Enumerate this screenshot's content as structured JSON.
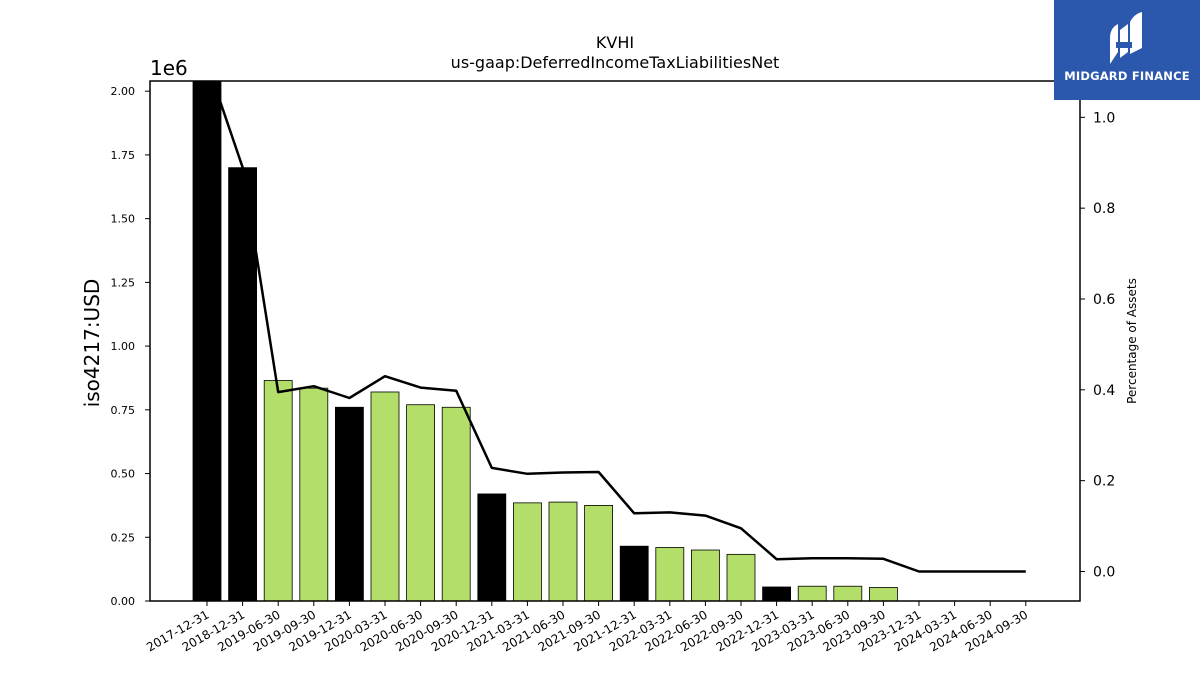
{
  "chart_data": {
    "type": "bar",
    "title": "KVHI",
    "subtitle": "us-gaap:DeferredIncomeTaxLiabilitiesNet",
    "ylabel": "iso4217:USD",
    "y_offset_label": "1e6",
    "y2label": "Percentage of Assets",
    "ylim": [
      0,
      2.04
    ],
    "y2lim": [
      -0.065,
      1.08
    ],
    "yticks": [
      "0.00",
      "0.25",
      "0.50",
      "0.75",
      "1.00",
      "1.25",
      "1.50",
      "1.75",
      "2.00"
    ],
    "y2ticks": [
      "0.0",
      "0.2",
      "0.4",
      "0.6",
      "0.8",
      "1.0"
    ],
    "grid": false,
    "categories": [
      "2017-12-31",
      "2018-12-31",
      "2019-06-30",
      "2019-09-30",
      "2019-12-31",
      "2020-03-31",
      "2020-06-30",
      "2020-09-30",
      "2020-12-31",
      "2021-03-31",
      "2021-06-30",
      "2021-09-30",
      "2021-12-31",
      "2022-03-31",
      "2022-06-30",
      "2022-09-30",
      "2022-12-31",
      "2023-03-31",
      "2023-06-30",
      "2023-09-30",
      "2023-12-31",
      "2024-03-31",
      "2024-06-30",
      "2024-09-30"
    ],
    "series": [
      {
        "values": [
          2.06,
          1.7,
          0.865,
          0.835,
          0.76,
          0.82,
          0.77,
          0.76,
          0.42,
          0.385,
          0.388,
          0.375,
          0.215,
          0.21,
          0.2,
          0.183,
          0.055,
          0.058,
          0.058,
          0.053,
          0,
          0,
          0,
          0
        ],
        "bar_colors": [
          "#000000",
          "#000000",
          "#b3de69",
          "#b3de69",
          "#000000",
          "#b3de69",
          "#b3de69",
          "#b3de69",
          "#000000",
          "#b3de69",
          "#b3de69",
          "#b3de69",
          "#000000",
          "#b3de69",
          "#b3de69",
          "#b3de69",
          "#000000",
          "#b3de69",
          "#b3de69",
          "#b3de69",
          "#000000",
          "#b3de69",
          "#b3de69",
          "#b3de69"
        ]
      },
      {
        "axis": "right",
        "type": "line",
        "color": "#000000",
        "values": [
          1.12,
          0.89,
          0.395,
          0.408,
          0.382,
          0.43,
          0.405,
          0.398,
          0.228,
          0.215,
          0.218,
          0.219,
          0.128,
          0.13,
          0.123,
          0.095,
          0.027,
          0.029,
          0.029,
          0.028,
          0.0,
          0.0,
          0.0,
          0.0
        ]
      }
    ]
  },
  "logo": {
    "text": "MIDGARD FINANCE",
    "background": "#2b57ad"
  }
}
